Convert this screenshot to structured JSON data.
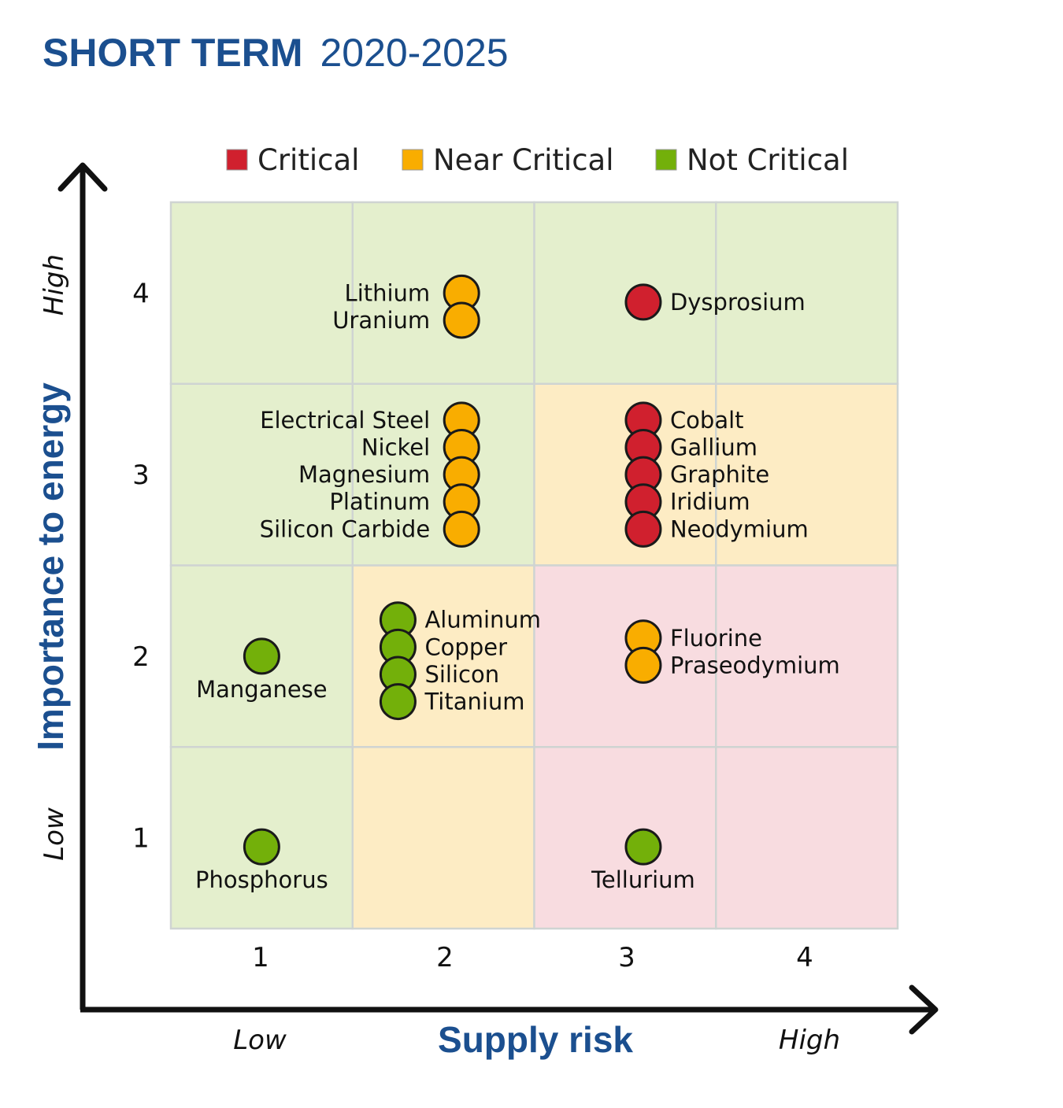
{
  "title": {
    "bold": "SHORT TERM",
    "light": "2020-2025"
  },
  "colors": {
    "critical": "#d0202e",
    "near_critical": "#f9ad00",
    "not_critical": "#73b00a",
    "bg_critical": "#f8dce0",
    "bg_near": "#fdecc4",
    "bg_not": "#e4efcd",
    "title_blue": "#1b4f8f"
  },
  "chart_data": {
    "type": "scatter",
    "title": "SHORT TERM 2020-2025",
    "xlabel": "Supply risk",
    "ylabel": "Importance to energy",
    "x_low_label": "Low",
    "x_high_label": "High",
    "y_low_label": "Low",
    "y_high_label": "High",
    "xticks": [
      "1",
      "2",
      "3",
      "4"
    ],
    "yticks": [
      "1",
      "2",
      "3",
      "4"
    ],
    "xlim": [
      0.5,
      4.5
    ],
    "ylim": [
      0.5,
      4.5
    ],
    "legend": {
      "position": "top",
      "entries": [
        {
          "label": "Critical",
          "color": "#d0202e"
        },
        {
          "label": "Near Critical",
          "color": "#f9ad00"
        },
        {
          "label": "Not Critical",
          "color": "#73b00a"
        }
      ]
    },
    "zones": [
      [
        "Not Critical",
        "Not Critical",
        "Not Critical",
        "Not Critical"
      ],
      [
        "Not Critical",
        "Not Critical",
        "Near Critical",
        "Near Critical"
      ],
      [
        "Not Critical",
        "Near Critical",
        "Critical",
        "Critical"
      ],
      [
        "Not Critical",
        "Near Critical",
        "Critical",
        "Critical"
      ]
    ],
    "points": [
      {
        "name": "Lithium",
        "x": 2.1,
        "y": 4.0,
        "category": "Near Critical"
      },
      {
        "name": "Uranium",
        "x": 2.1,
        "y": 3.85,
        "category": "Near Critical"
      },
      {
        "name": "Dysprosium",
        "x": 3.1,
        "y": 3.95,
        "category": "Critical"
      },
      {
        "name": "Electrical Steel",
        "x": 2.1,
        "y": 3.3,
        "category": "Near Critical"
      },
      {
        "name": "Nickel",
        "x": 2.1,
        "y": 3.15,
        "category": "Near Critical"
      },
      {
        "name": "Magnesium",
        "x": 2.1,
        "y": 3.0,
        "category": "Near Critical"
      },
      {
        "name": "Platinum",
        "x": 2.1,
        "y": 2.85,
        "category": "Near Critical"
      },
      {
        "name": "Silicon Carbide",
        "x": 2.1,
        "y": 2.7,
        "category": "Near Critical"
      },
      {
        "name": "Cobalt",
        "x": 3.1,
        "y": 3.3,
        "category": "Critical"
      },
      {
        "name": "Gallium",
        "x": 3.1,
        "y": 3.15,
        "category": "Critical"
      },
      {
        "name": "Graphite",
        "x": 3.1,
        "y": 3.0,
        "category": "Critical"
      },
      {
        "name": "Iridium",
        "x": 3.1,
        "y": 2.85,
        "category": "Critical"
      },
      {
        "name": "Neodymium",
        "x": 3.1,
        "y": 2.7,
        "category": "Critical"
      },
      {
        "name": "Manganese",
        "x": 1.0,
        "y": 2.0,
        "category": "Not Critical"
      },
      {
        "name": "Aluminum",
        "x": 1.75,
        "y": 2.2,
        "category": "Not Critical"
      },
      {
        "name": "Copper",
        "x": 1.75,
        "y": 2.05,
        "category": "Not Critical"
      },
      {
        "name": "Silicon",
        "x": 1.75,
        "y": 1.9,
        "category": "Not Critical"
      },
      {
        "name": "Titanium",
        "x": 1.75,
        "y": 1.75,
        "category": "Not Critical"
      },
      {
        "name": "Fluorine",
        "x": 3.1,
        "y": 2.1,
        "category": "Near Critical"
      },
      {
        "name": "Praseodymium",
        "x": 3.1,
        "y": 1.95,
        "category": "Near Critical"
      },
      {
        "name": "Phosphorus",
        "x": 1.0,
        "y": 0.95,
        "category": "Not Critical"
      },
      {
        "name": "Tellurium",
        "x": 3.1,
        "y": 0.95,
        "category": "Not Critical"
      }
    ]
  }
}
